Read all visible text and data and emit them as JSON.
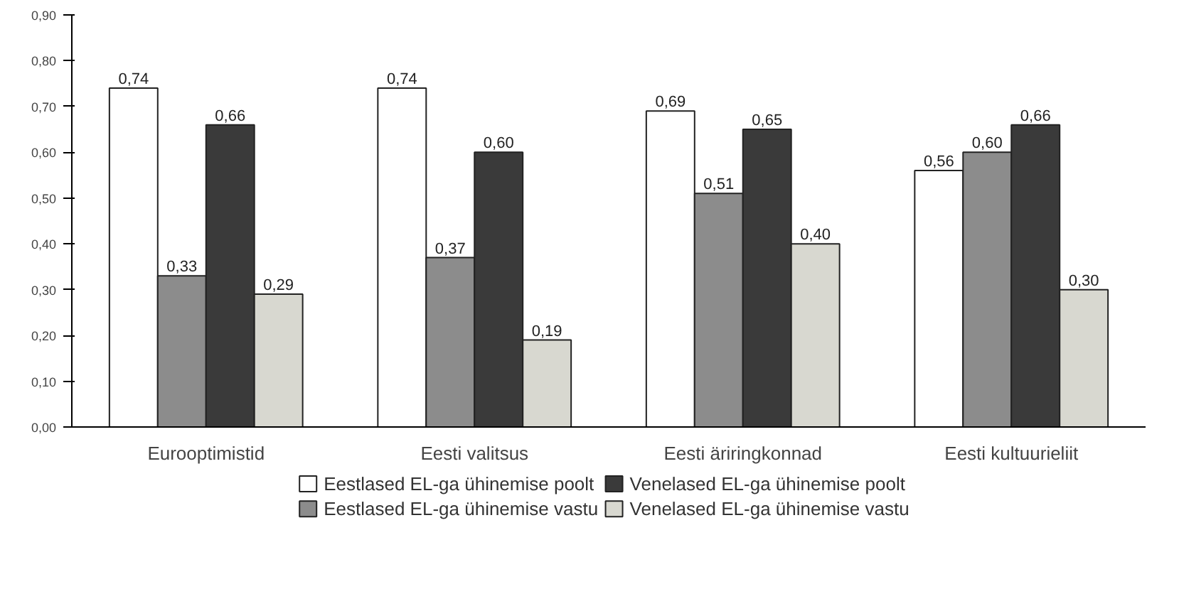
{
  "chart_data": {
    "type": "bar",
    "categories": [
      "Eurooptimistid",
      "Eesti valitsus",
      "Eesti äriringkonnad",
      "Eesti kultuurieliit"
    ],
    "series": [
      {
        "name": "Eestlased EL-ga ühinemise poolt",
        "color": "#ffffff",
        "values": [
          0.74,
          0.74,
          0.69,
          0.56
        ],
        "value_labels": [
          "0,74",
          "0,74",
          "0,69",
          "0,56"
        ]
      },
      {
        "name": "Eestlased EL-ga ühinemise vastu",
        "color": "#8c8c8c",
        "values": [
          0.33,
          0.37,
          0.51,
          0.6
        ],
        "value_labels": [
          "0,33",
          "0,37",
          "0,51",
          "0,60"
        ]
      },
      {
        "name": "Venelased EL-ga ühinemise poolt",
        "color": "#3a3a3a",
        "values": [
          0.66,
          0.6,
          0.65,
          0.66
        ],
        "value_labels": [
          "0,66",
          "0,60",
          "0,65",
          "0,66"
        ]
      },
      {
        "name": "Venelased EL-ga ühinemise vastu",
        "color": "#d8d8d0",
        "values": [
          0.29,
          0.19,
          0.4,
          0.3
        ],
        "value_labels": [
          "0,29",
          "0,19",
          "0,40",
          "0,30"
        ]
      }
    ],
    "ylim": [
      0,
      0.9
    ],
    "yticks": [
      {
        "value": 0,
        "label": "0,00"
      },
      {
        "value": 0.1,
        "label": "0,10"
      },
      {
        "value": 0.2,
        "label": "0,20"
      },
      {
        "value": 0.3,
        "label": "0,30"
      },
      {
        "value": 0.4,
        "label": "0,40"
      },
      {
        "value": 0.5,
        "label": "0,50"
      },
      {
        "value": 0.6,
        "label": "0,60"
      },
      {
        "value": 0.7,
        "label": "0,70"
      },
      {
        "value": 0.8,
        "label": "0,80"
      },
      {
        "value": 0.9,
        "label": "0,90"
      }
    ],
    "grid": false,
    "legend": "bottom"
  }
}
